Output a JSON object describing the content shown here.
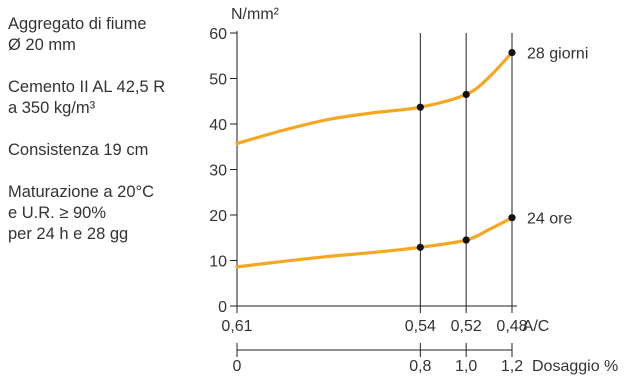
{
  "notes": [
    "Aggregato di fiume\nØ 20 mm",
    "Cemento II AL 42,5 R\na 350 kg/m³",
    "Consistenza 19 cm",
    "Maturazione a 20°C\ne U.R. ≥ 90%\nper 24 h e 28 gg"
  ],
  "chart_data": {
    "type": "line",
    "ylabel": "N/mm²",
    "ylim": [
      0,
      60
    ],
    "y_ticks": [
      "0",
      "10",
      "20",
      "30",
      "40",
      "50",
      "60"
    ],
    "x_axis_primary": {
      "label": "A/C",
      "ticks": [
        {
          "value": 0.61,
          "label": "0,61"
        },
        {
          "value": 0.54,
          "label": "0,54"
        },
        {
          "value": 0.52,
          "label": "0,52"
        },
        {
          "value": 0.48,
          "label": "0,48"
        }
      ]
    },
    "x_axis_secondary": {
      "label": "Dosaggio %",
      "ticks": [
        {
          "value": 0,
          "label": "0"
        },
        {
          "value": 0.8,
          "label": "0,8"
        },
        {
          "value": 1.0,
          "label": "1,0"
        },
        {
          "value": 1.2,
          "label": "1,2"
        }
      ]
    },
    "grid": "vertical lines at marked points",
    "series": [
      {
        "name": "28 giorni",
        "color": "#f5a623",
        "curve": [
          [
            0,
            35.7
          ],
          [
            0.2,
            38.6
          ],
          [
            0.4,
            41.0
          ],
          [
            0.6,
            42.5
          ],
          [
            0.8,
            43.7
          ],
          [
            1.0,
            46.5
          ],
          [
            1.1,
            50.3
          ],
          [
            1.2,
            55.7
          ]
        ],
        "markers": [
          [
            0.8,
            43.7
          ],
          [
            1.0,
            46.5
          ],
          [
            1.2,
            55.7
          ]
        ]
      },
      {
        "name": "24 ore",
        "color": "#f5a623",
        "curve": [
          [
            0,
            8.6
          ],
          [
            0.2,
            9.8
          ],
          [
            0.4,
            10.9
          ],
          [
            0.6,
            11.8
          ],
          [
            0.8,
            12.9
          ],
          [
            1.0,
            14.5
          ],
          [
            1.1,
            16.8
          ],
          [
            1.2,
            19.4
          ]
        ],
        "markers": [
          [
            0.8,
            12.9
          ],
          [
            1.0,
            14.5
          ],
          [
            1.2,
            19.4
          ]
        ]
      }
    ]
  }
}
